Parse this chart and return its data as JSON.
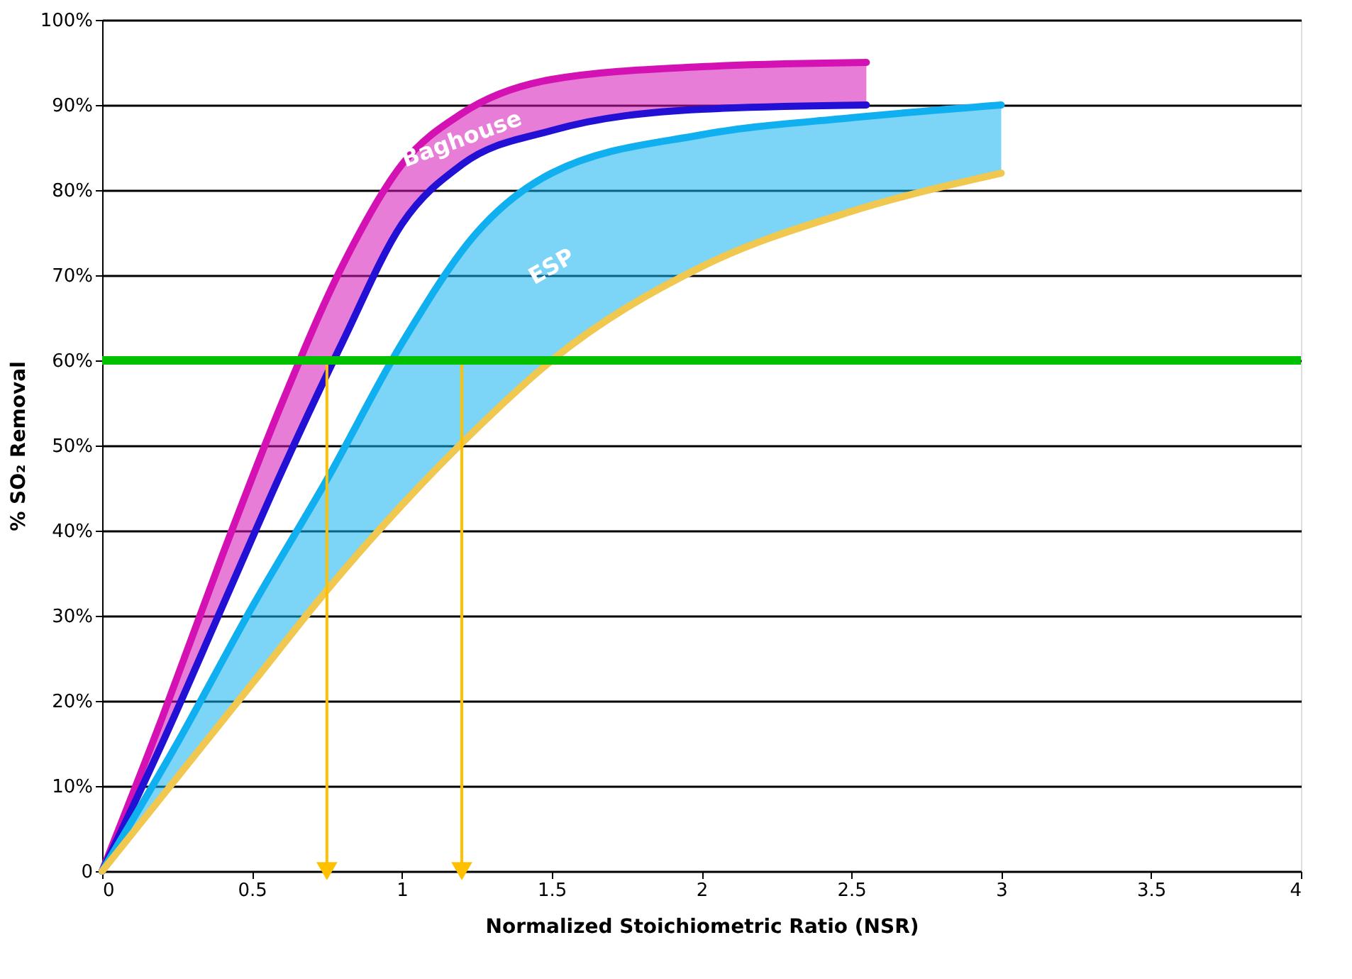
{
  "chart_data": {
    "type": "line",
    "xlabel": "Normalized Stoichiometric Ratio (NSR)",
    "ylabel": "% SO₂ Removal",
    "xlim": [
      0,
      4
    ],
    "xticks": [
      0,
      0.5,
      1,
      1.5,
      2,
      2.5,
      3,
      3.5,
      4
    ],
    "ylim": [
      0,
      100
    ],
    "yticks": [
      0,
      {
        "value": 10,
        "label": "10%"
      },
      {
        "value": 20,
        "label": "20%"
      },
      {
        "value": 30,
        "label": "30%"
      },
      {
        "value": 40,
        "label": "40%"
      },
      {
        "value": 50,
        "label": "50%"
      },
      {
        "value": 60,
        "label": "60%"
      },
      {
        "value": 70,
        "label": "70%"
      },
      {
        "value": 80,
        "label": "80%"
      },
      {
        "value": 90,
        "label": "90%"
      },
      {
        "value": 100,
        "label": "100%"
      }
    ],
    "grid": "y",
    "series": [
      {
        "name": "Baghouse",
        "color": "#d412b4",
        "x": [
          0,
          0.2,
          0.4,
          0.6,
          0.8,
          1.0,
          1.2,
          1.5,
          2.0,
          2.55
        ],
        "values": [
          0,
          18,
          37,
          55,
          71,
          83,
          89,
          93,
          94.5,
          95
        ],
        "upper": [
          0,
          18,
          37,
          55,
          71,
          83,
          89,
          93,
          94.5,
          95
        ],
        "lower": [
          0,
          15,
          31,
          47,
          62,
          76,
          83,
          87,
          89.5,
          90
        ]
      },
      {
        "color": "#2210d4",
        "x": [
          0,
          0.2,
          0.4,
          0.6,
          0.8,
          1.0,
          1.2,
          1.5,
          2.0,
          2.55
        ],
        "values": [
          0,
          15,
          31,
          47,
          62,
          76,
          83,
          87,
          89.5,
          90
        ]
      },
      {
        "name": "ESP",
        "color": "#10b0f0",
        "x": [
          0,
          0.25,
          0.5,
          0.75,
          1.0,
          1.25,
          1.5,
          2.0,
          2.5,
          3.0
        ],
        "values": [
          0,
          15,
          31,
          46,
          62,
          75,
          82,
          86.5,
          88.5,
          90
        ],
        "upper": [
          0,
          15,
          31,
          46,
          62,
          75,
          82,
          86.5,
          88.5,
          90
        ],
        "lower": [
          0,
          11,
          22,
          33,
          43,
          52,
          60,
          71,
          77.5,
          82
        ]
      },
      {
        "color": "#f0c850",
        "x": [
          0,
          0.25,
          0.5,
          0.75,
          1.0,
          1.25,
          1.5,
          2.0,
          2.5,
          3.0
        ],
        "values": [
          0,
          11,
          22,
          33,
          43,
          52,
          60,
          71,
          77.5,
          82
        ]
      },
      {
        "color": "#ffc000",
        "marker": "triangle",
        "x": [
          0.75,
          0.75
        ],
        "values": [
          60,
          0
        ]
      },
      {
        "color": "#ffc000",
        "marker": "triangle",
        "x": [
          1.2,
          1.2
        ],
        "values": [
          60,
          0
        ]
      }
    ],
    "ref_lines": [
      {
        "axis": "y",
        "value": 60,
        "color": "#00c000"
      }
    ]
  }
}
